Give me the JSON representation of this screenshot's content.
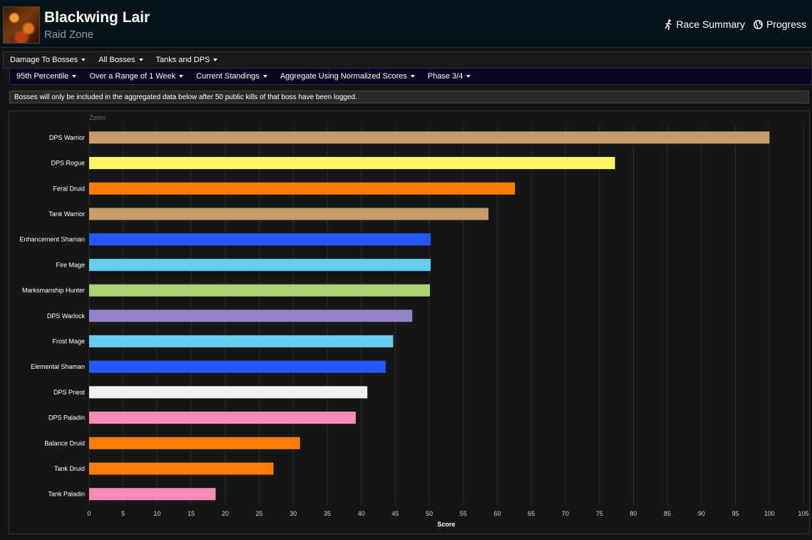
{
  "header": {
    "title": "Blackwing Lair",
    "subtitle": "Raid Zone",
    "links": [
      {
        "label": "Race Summary",
        "icon": "running-person-icon"
      },
      {
        "label": "Progress",
        "icon": "globe-icon"
      }
    ]
  },
  "filters_primary": [
    "Damage To Bosses",
    "All Bosses",
    "Tanks and DPS"
  ],
  "filters_secondary": [
    "95th Percentile",
    "Over a Range of 1 Week",
    "Current Standings",
    "Aggregate Using Normalized Scores",
    "Phase 3/4"
  ],
  "notice": "Bosses will only be included in the aggregated data below after 50 public kills of that boss have been logged.",
  "chart_zoom_label": "Zoom",
  "colors": {
    "header_bg": "#06141a",
    "secondary_filter_bg": "#06071e",
    "chart_bg": "#161616"
  },
  "chart_data": {
    "type": "bar",
    "orientation": "horizontal",
    "xlabel": "Score",
    "xlim": [
      0,
      105
    ],
    "xticks": [
      0,
      5,
      10,
      15,
      20,
      25,
      30,
      35,
      40,
      45,
      50,
      55,
      60,
      65,
      70,
      75,
      80,
      85,
      90,
      95,
      100,
      105
    ],
    "grid": true,
    "categories": [
      "DPS Warrior",
      "DPS Rogue",
      "Feral Druid",
      "Tank Warrior",
      "Enhancement Shaman",
      "Fire Mage",
      "Marksmanship Hunter",
      "DPS Warlock",
      "Frost Mage",
      "Elemental Shaman",
      "DPS Priest",
      "DPS Paladin",
      "Balance Druid",
      "Tank Druid",
      "Tank Paladin"
    ],
    "values": [
      100,
      77.3,
      62.6,
      58.7,
      50.2,
      50.2,
      50.1,
      47.5,
      44.7,
      43.6,
      40.9,
      39.2,
      31.0,
      27.1,
      18.6
    ],
    "colors": [
      "#c69b6d",
      "#fff468",
      "#ff7c0a",
      "#c69b6d",
      "#2359ff",
      "#68ccef",
      "#aad372",
      "#9482c9",
      "#68ccef",
      "#2359ff",
      "#f0f0f0",
      "#f48cba",
      "#ff7c0a",
      "#ff7c0a",
      "#f48cba"
    ]
  }
}
